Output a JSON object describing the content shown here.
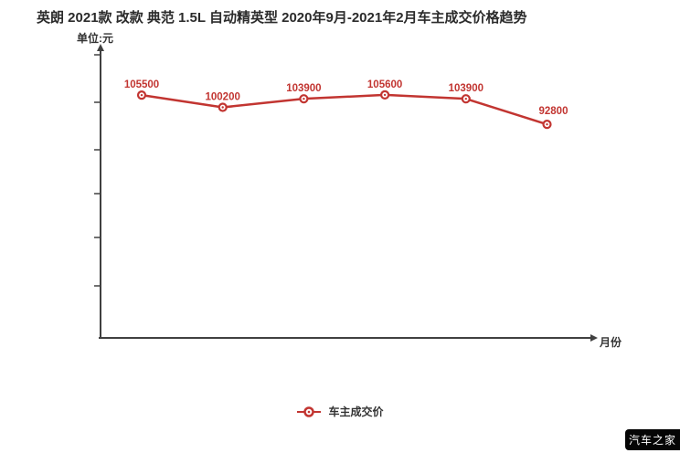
{
  "header": {
    "title": "英朗 2021款 改款 典范 1.5L 自动精英型 2020年9月-2021年2月车主成交价格趋势",
    "unit_label": "单位:元"
  },
  "chart_data": {
    "type": "line",
    "title": "英朗 2021款 改款 典范 1.5L 自动精英型 2020年9月-2021年2月车主成交价格趋势",
    "ylabel": "单位:元",
    "xlabel": "月份",
    "x_tick_labels": [],
    "categories_implied_by_title": [
      "2020年9月",
      "2020年10月",
      "2020年11月",
      "2020年12月",
      "2021年1月",
      "2021年2月"
    ],
    "series": [
      {
        "name": "车主成交价",
        "color": "#c23531",
        "values": [
          105500,
          100200,
          103900,
          105600,
          103900,
          92800
        ],
        "point_labels": [
          "105500",
          "100200",
          "103900",
          "105600",
          "103900",
          "92800"
        ]
      }
    ],
    "ylim": [
      0,
      125000
    ],
    "grid": false,
    "legend_position": "bottom",
    "axis_color": "#404040"
  },
  "legend": {
    "items": [
      {
        "label": "车主成交价",
        "color": "#c23531"
      }
    ]
  },
  "watermark": {
    "text": "汽车之家",
    "bg": "#050505",
    "fg": "#ffffff"
  }
}
